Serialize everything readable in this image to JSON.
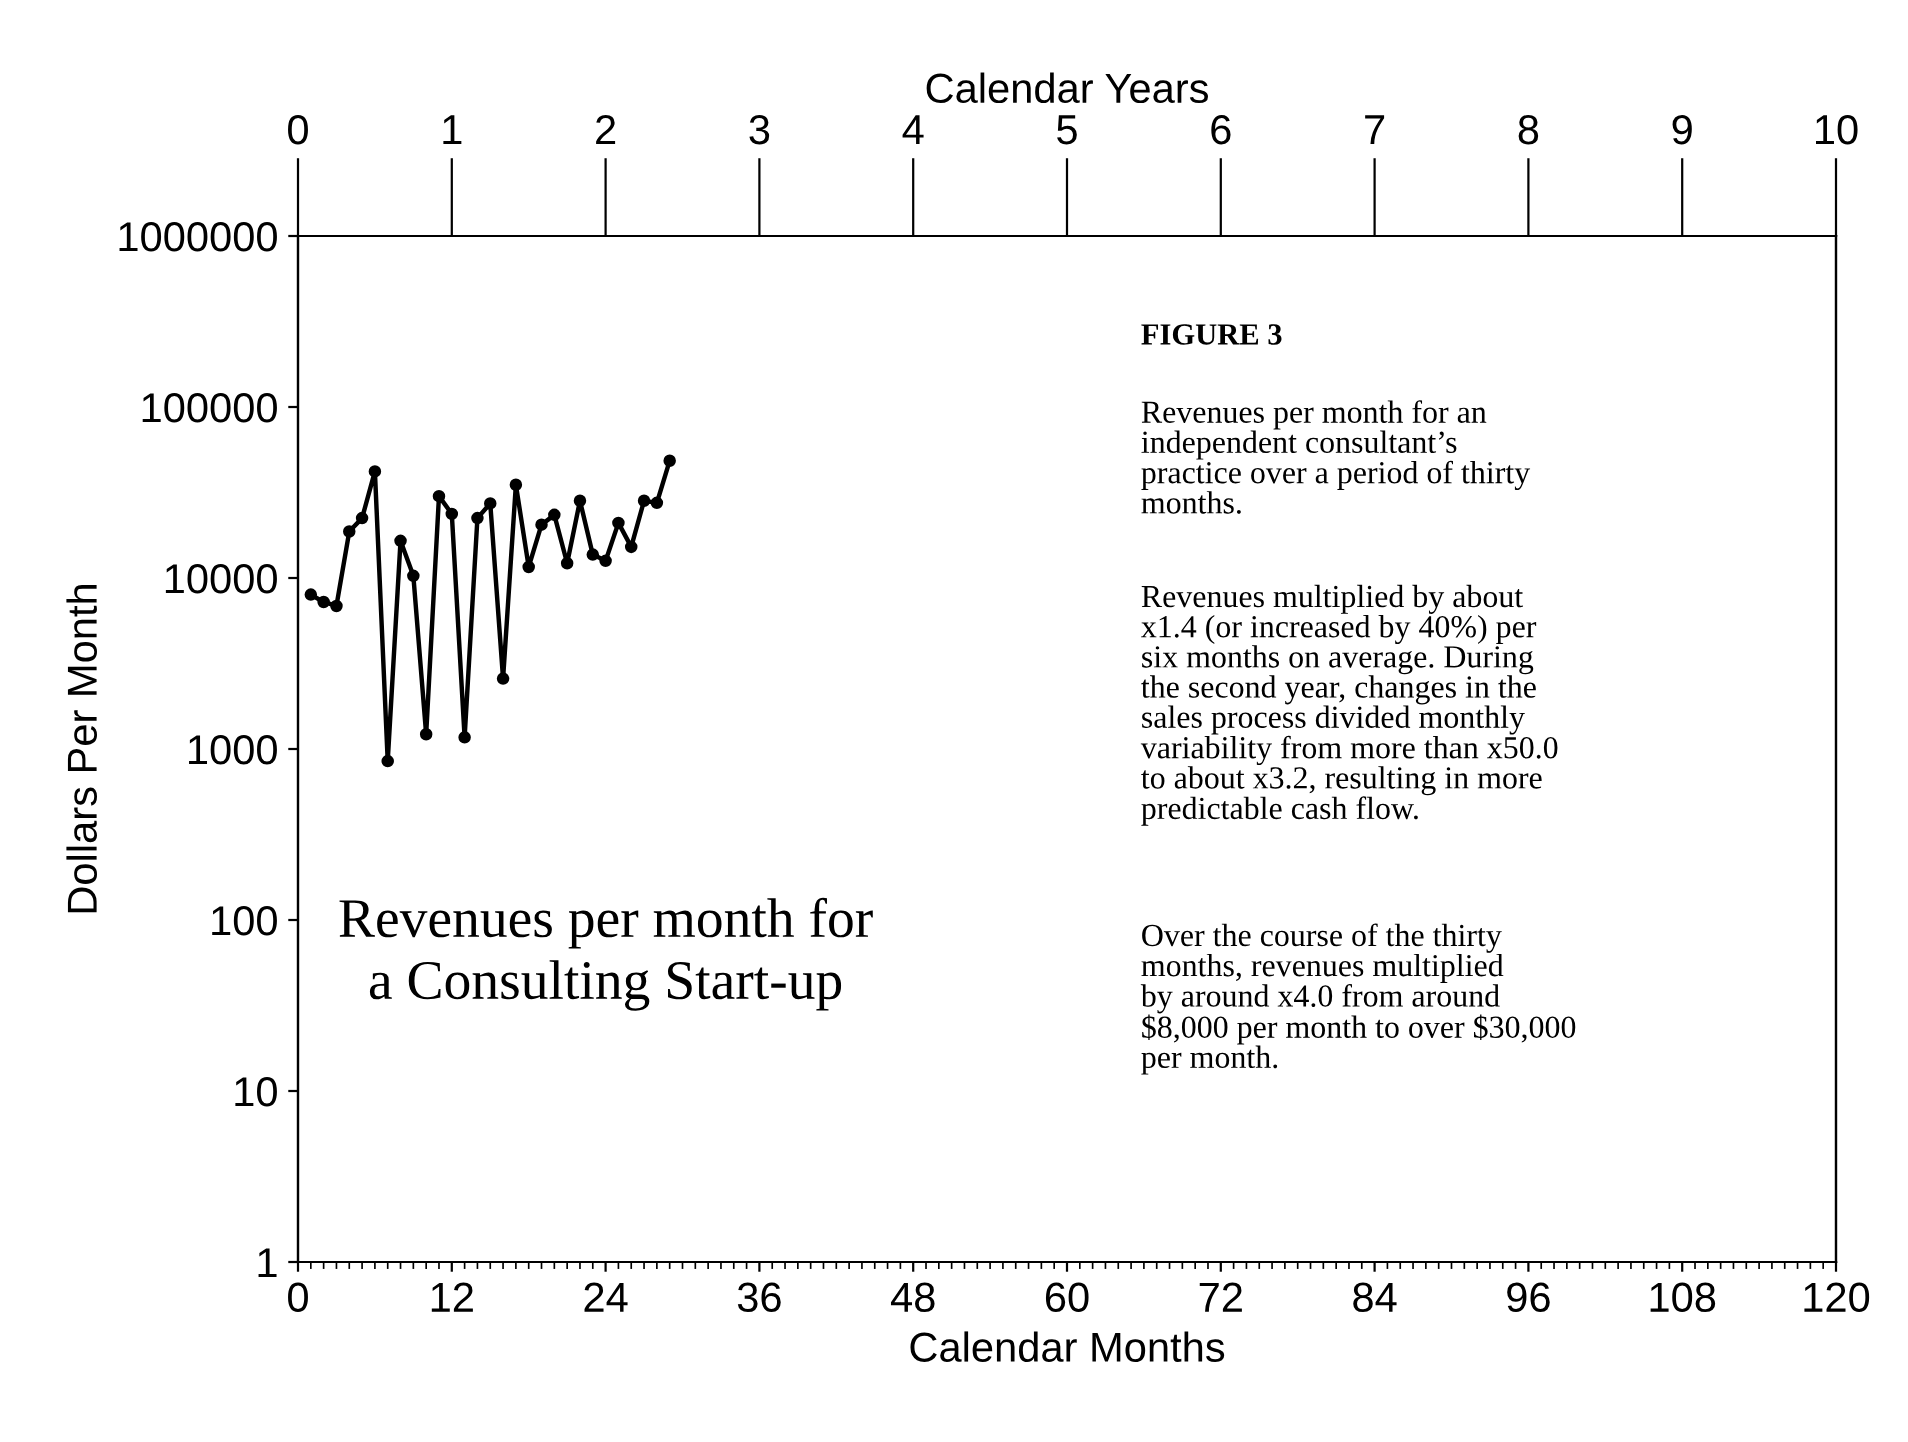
{
  "chart_data": {
    "type": "line",
    "xlabel": "Calendar Months",
    "ylabel": "Dollars Per Month",
    "x2label": "Calendar Years",
    "x": [
      1,
      2,
      3,
      4,
      5,
      6,
      7,
      8,
      9,
      10,
      11,
      12,
      13,
      14,
      15,
      16,
      17,
      18,
      19,
      20,
      21,
      22,
      23,
      24,
      25,
      26,
      27,
      28,
      29
    ],
    "series": [
      {
        "color": "#000000",
        "values": [
          8000,
          7240,
          6860,
          18700,
          22400,
          42000,
          850,
          16500,
          10300,
          1220,
          30100,
          23700,
          1170,
          22400,
          27300,
          2580,
          35100,
          11600,
          20500,
          23400,
          12200,
          28300,
          13700,
          12600,
          21000,
          15200,
          28300,
          27500,
          48500
        ]
      }
    ],
    "log": "y",
    "marker": "circle",
    "line_style": "solid",
    "grid": false,
    "legend": false,
    "xlim": [
      0,
      120
    ],
    "xticks": [
      0,
      12,
      24,
      36,
      48,
      60,
      72,
      84,
      96,
      108,
      120
    ],
    "x2lim": [
      0,
      10
    ],
    "x2ticks": [
      0,
      1,
      2,
      3,
      4,
      5,
      6,
      7,
      8,
      9,
      10
    ],
    "ylim": [
      1,
      1000000
    ],
    "yticks": [
      1,
      10,
      100,
      1000,
      10000,
      100000,
      1000000
    ],
    "annotations": [
      "Revenues per month for\na Consulting Start-up",
      "FIGURE 3",
      "Revenues per month for an\nindependent consultant’s\npractice over a period of thirty\nmonths.",
      "Revenues multiplied by about\nx1.4 (or increased by 40%) per\nsix months on average. During\nthe second year, changes in the\nsales process divided monthly\nvariability from more than x50.0\nto about x3.2, resulting in more\npredictable cash flow.",
      "Over the course of the thirty\nmonths, revenues multiplied\nby around x4.0 from around\n$8,000 per month to over $30,000\nper month."
    ]
  }
}
